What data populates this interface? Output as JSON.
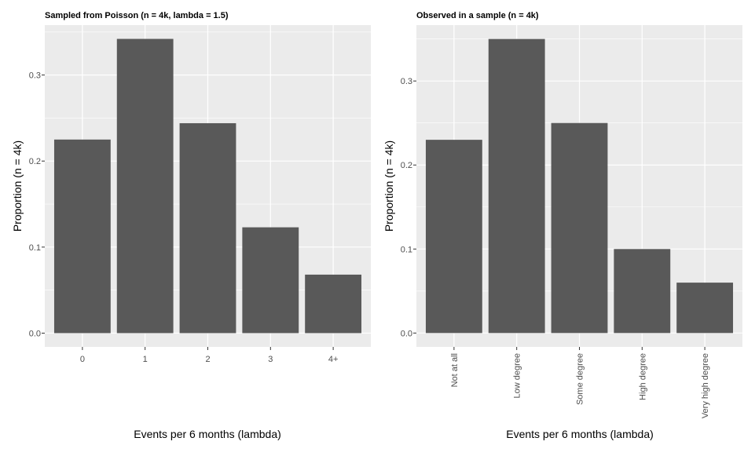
{
  "chart_data": [
    {
      "type": "bar",
      "title": "Sampled from Poisson (n = 4k, lambda = 1.5)",
      "xlabel": "Events per 6 months (lambda)",
      "ylabel": "Proportion (n = 4k)",
      "categories": [
        "0",
        "1",
        "2",
        "3",
        "4+"
      ],
      "values": [
        0.225,
        0.342,
        0.244,
        0.123,
        0.068
      ],
      "yticks": [
        "0.0",
        "0.1",
        "0.2",
        "0.3"
      ],
      "ylim": [
        -0.016,
        0.358
      ],
      "xtick_rotation": 0,
      "grid": true,
      "bar_color": "#595959",
      "panel_color": "#ebebeb",
      "grid_color": "#ffffff"
    },
    {
      "type": "bar",
      "title": "Observed in a sample (n = 4k)",
      "xlabel": "Events per 6 months (lambda)",
      "ylabel": "Proportion (n = 4k)",
      "categories": [
        "Not at all",
        "Low degree",
        "Some degree",
        "High degree",
        "Very high degree"
      ],
      "values": [
        0.23,
        0.35,
        0.25,
        0.1,
        0.06
      ],
      "yticks": [
        "0.0",
        "0.1",
        "0.2",
        "0.3"
      ],
      "ylim": [
        -0.0165,
        0.3665
      ],
      "xtick_rotation": -90,
      "grid": true,
      "bar_color": "#595959",
      "panel_color": "#ebebeb",
      "grid_color": "#ffffff"
    }
  ]
}
